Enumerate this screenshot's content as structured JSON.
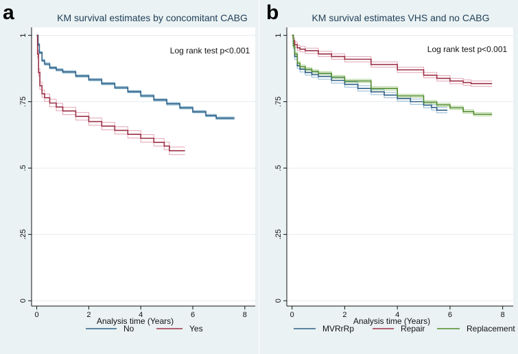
{
  "chart_data": [
    {
      "panel_label": "a",
      "type": "line",
      "title": "KM survival estimates by concomitant CABG",
      "xlabel": "Analysis time (Years)",
      "ylabel": "",
      "xlim": [
        -0.2,
        8.4
      ],
      "ylim": [
        -0.02,
        1.03
      ],
      "xticks": [
        0,
        2,
        4,
        6,
        8
      ],
      "xtick_labels": [
        "0",
        "2",
        "4",
        "6",
        "8"
      ],
      "yticks": [
        0,
        0.25,
        0.5,
        0.75,
        1
      ],
      "ytick_labels": [
        "0",
        ".25",
        ".5",
        ".75",
        "1"
      ],
      "grid": "horizontal",
      "legend": "bottom",
      "annotation": "Log rank test p<0.001",
      "series": [
        {
          "name": "No",
          "color": "#2e5f86",
          "ci_color": "#6fa6c4",
          "x": [
            0,
            0.05,
            0.1,
            0.2,
            0.3,
            0.5,
            0.75,
            1,
            1.5,
            2,
            2.5,
            3,
            3.5,
            4,
            4.5,
            5,
            5.5,
            6,
            6.5,
            6.9,
            7.1,
            7.6
          ],
          "y": [
            1,
            0.965,
            0.935,
            0.905,
            0.892,
            0.878,
            0.87,
            0.862,
            0.847,
            0.833,
            0.818,
            0.803,
            0.788,
            0.772,
            0.757,
            0.742,
            0.727,
            0.712,
            0.698,
            0.688,
            0.688,
            0.688
          ],
          "ci_width": 0.004
        },
        {
          "name": "Yes",
          "color": "#9b2f45",
          "ci_color": "#e0a3b2",
          "x": [
            0,
            0.03,
            0.07,
            0.12,
            0.2,
            0.3,
            0.5,
            0.75,
            1,
            1.5,
            2,
            2.5,
            3,
            3.5,
            4,
            4.5,
            4.9,
            5.1,
            5.7
          ],
          "y": [
            1,
            0.93,
            0.86,
            0.81,
            0.78,
            0.765,
            0.745,
            0.73,
            0.715,
            0.695,
            0.675,
            0.658,
            0.642,
            0.627,
            0.612,
            0.597,
            0.583,
            0.565,
            0.565
          ],
          "ci_width": 0.014
        }
      ]
    },
    {
      "panel_label": "b",
      "type": "line",
      "title": "KM survival estimates VHS and no CABG",
      "xlabel": "Analysis time (Years)",
      "ylabel": "",
      "xlim": [
        -0.2,
        8.4
      ],
      "ylim": [
        -0.02,
        1.03
      ],
      "xticks": [
        0,
        2,
        4,
        6,
        8
      ],
      "xtick_labels": [
        "0",
        "2",
        "4",
        "6",
        "8"
      ],
      "yticks": [
        0,
        0.25,
        0.5,
        0.75,
        1
      ],
      "ytick_labels": [
        "0",
        ".25",
        ".5",
        ".75",
        "1"
      ],
      "grid": "horizontal",
      "legend": "bottom",
      "annotation": "Log rank test p<0.001",
      "series": [
        {
          "name": "MVRrRp",
          "color": "#2e5f86",
          "ci_color": "#8fb6d0",
          "x": [
            0,
            0.05,
            0.1,
            0.2,
            0.3,
            0.5,
            0.75,
            1,
            1.5,
            2,
            2.5,
            3,
            3.5,
            4,
            4.5,
            5,
            5.3,
            5.5,
            5.9
          ],
          "y": [
            1,
            0.96,
            0.92,
            0.885,
            0.872,
            0.86,
            0.852,
            0.845,
            0.83,
            0.815,
            0.8,
            0.787,
            0.775,
            0.762,
            0.75,
            0.737,
            0.728,
            0.718,
            0.718
          ],
          "ci_width": 0.01
        },
        {
          "name": "Repair",
          "color": "#9b2f45",
          "ci_color": "#e0a3b2",
          "x": [
            0,
            0.05,
            0.1,
            0.2,
            0.3,
            0.5,
            1,
            1.5,
            2,
            3,
            4,
            5,
            5.5,
            6,
            6.5,
            6.8,
            7.6
          ],
          "y": [
            1,
            0.98,
            0.965,
            0.953,
            0.948,
            0.942,
            0.93,
            0.92,
            0.91,
            0.89,
            0.87,
            0.85,
            0.838,
            0.828,
            0.822,
            0.818,
            0.818
          ],
          "ci_width": 0.01
        },
        {
          "name": "Replacement",
          "color": "#4d8a2a",
          "ci_color": "#a9cf8e",
          "x": [
            0,
            0.05,
            0.1,
            0.2,
            0.3,
            0.5,
            0.75,
            1,
            1.5,
            2,
            3,
            4,
            5,
            5.5,
            6,
            6.5,
            6.9,
            7.6
          ],
          "y": [
            1,
            0.96,
            0.93,
            0.895,
            0.882,
            0.872,
            0.864,
            0.857,
            0.843,
            0.828,
            0.8,
            0.772,
            0.748,
            0.738,
            0.727,
            0.713,
            0.703,
            0.703
          ],
          "ci_width": 0.006
        }
      ]
    }
  ]
}
